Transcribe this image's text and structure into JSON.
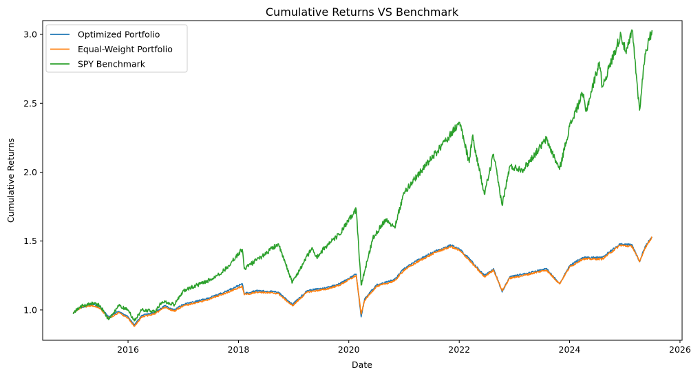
{
  "chart_data": {
    "type": "line",
    "title": "Cumulative Returns VS Benchmark",
    "xlabel": "Date",
    "ylabel": "Cumulative Returns",
    "xlim": [
      "2014-06-15",
      "2026-01-15"
    ],
    "ylim": [
      0.78,
      3.1
    ],
    "grid": false,
    "legend_position": "top-left",
    "x_ticks": [
      {
        "value": "2016-01-01",
        "label": "2016"
      },
      {
        "value": "2018-01-01",
        "label": "2018"
      },
      {
        "value": "2020-01-01",
        "label": "2020"
      },
      {
        "value": "2022-01-01",
        "label": "2022"
      },
      {
        "value": "2024-01-01",
        "label": "2024"
      },
      {
        "value": "2026-01-01",
        "label": "2026"
      }
    ],
    "y_ticks": [
      {
        "value": 1.0,
        "label": "1.0"
      },
      {
        "value": 1.5,
        "label": "1.5"
      },
      {
        "value": 2.0,
        "label": "2.0"
      },
      {
        "value": 2.5,
        "label": "2.5"
      },
      {
        "value": 3.0,
        "label": "3.0"
      }
    ],
    "series": [
      {
        "name": "Optimized Portfolio",
        "color": "#1f77b4",
        "points": [
          [
            "2015-01-02",
            0.98
          ],
          [
            "2015-03-01",
            1.02
          ],
          [
            "2015-05-15",
            1.04
          ],
          [
            "2015-07-01",
            1.02
          ],
          [
            "2015-08-25",
            0.95
          ],
          [
            "2015-11-01",
            0.99
          ],
          [
            "2016-01-01",
            0.95
          ],
          [
            "2016-02-11",
            0.89
          ],
          [
            "2016-04-01",
            0.96
          ],
          [
            "2016-06-24",
            0.98
          ],
          [
            "2016-09-01",
            1.03
          ],
          [
            "2016-11-01",
            1.0
          ],
          [
            "2017-01-01",
            1.04
          ],
          [
            "2017-06-01",
            1.08
          ],
          [
            "2017-10-01",
            1.13
          ],
          [
            "2018-01-26",
            1.19
          ],
          [
            "2018-02-08",
            1.12
          ],
          [
            "2018-05-01",
            1.14
          ],
          [
            "2018-09-20",
            1.13
          ],
          [
            "2018-12-24",
            1.04
          ],
          [
            "2019-04-01",
            1.14
          ],
          [
            "2019-08-01",
            1.16
          ],
          [
            "2019-11-01",
            1.19
          ],
          [
            "2020-02-19",
            1.26
          ],
          [
            "2020-03-23",
            0.95
          ],
          [
            "2020-04-15",
            1.08
          ],
          [
            "2020-07-01",
            1.18
          ],
          [
            "2020-10-30",
            1.22
          ],
          [
            "2021-01-01",
            1.3
          ],
          [
            "2021-04-01",
            1.36
          ],
          [
            "2021-08-01",
            1.43
          ],
          [
            "2021-11-08",
            1.47
          ],
          [
            "2022-01-04",
            1.44
          ],
          [
            "2022-03-01",
            1.38
          ],
          [
            "2022-06-16",
            1.25
          ],
          [
            "2022-08-16",
            1.3
          ],
          [
            "2022-10-12",
            1.13
          ],
          [
            "2022-12-01",
            1.24
          ],
          [
            "2023-03-01",
            1.26
          ],
          [
            "2023-07-31",
            1.3
          ],
          [
            "2023-10-27",
            1.19
          ],
          [
            "2024-01-01",
            1.32
          ],
          [
            "2024-03-28",
            1.38
          ],
          [
            "2024-08-05",
            1.38
          ],
          [
            "2024-12-01",
            1.48
          ],
          [
            "2025-02-19",
            1.47
          ],
          [
            "2025-04-08",
            1.35
          ],
          [
            "2025-05-15",
            1.46
          ],
          [
            "2025-06-30",
            1.53
          ]
        ]
      },
      {
        "name": "Equal-Weight Portfolio",
        "color": "#ff7f0e",
        "points": [
          [
            "2015-01-02",
            0.98
          ],
          [
            "2015-03-01",
            1.02
          ],
          [
            "2015-05-15",
            1.03
          ],
          [
            "2015-07-01",
            1.01
          ],
          [
            "2015-08-25",
            0.94
          ],
          [
            "2015-11-01",
            0.98
          ],
          [
            "2016-01-01",
            0.94
          ],
          [
            "2016-02-11",
            0.88
          ],
          [
            "2016-04-01",
            0.95
          ],
          [
            "2016-06-24",
            0.97
          ],
          [
            "2016-09-01",
            1.02
          ],
          [
            "2016-11-01",
            0.99
          ],
          [
            "2017-01-01",
            1.03
          ],
          [
            "2017-06-01",
            1.07
          ],
          [
            "2017-10-01",
            1.12
          ],
          [
            "2018-01-26",
            1.17
          ],
          [
            "2018-02-08",
            1.11
          ],
          [
            "2018-05-01",
            1.13
          ],
          [
            "2018-09-20",
            1.12
          ],
          [
            "2018-12-24",
            1.03
          ],
          [
            "2019-04-01",
            1.13
          ],
          [
            "2019-08-01",
            1.15
          ],
          [
            "2019-11-01",
            1.18
          ],
          [
            "2020-02-19",
            1.25
          ],
          [
            "2020-03-23",
            0.97
          ],
          [
            "2020-04-15",
            1.07
          ],
          [
            "2020-07-01",
            1.17
          ],
          [
            "2020-10-30",
            1.21
          ],
          [
            "2021-01-01",
            1.29
          ],
          [
            "2021-04-01",
            1.35
          ],
          [
            "2021-08-01",
            1.42
          ],
          [
            "2021-11-08",
            1.46
          ],
          [
            "2022-01-04",
            1.43
          ],
          [
            "2022-03-01",
            1.37
          ],
          [
            "2022-06-16",
            1.24
          ],
          [
            "2022-08-16",
            1.29
          ],
          [
            "2022-10-12",
            1.14
          ],
          [
            "2022-12-01",
            1.23
          ],
          [
            "2023-03-01",
            1.25
          ],
          [
            "2023-07-31",
            1.29
          ],
          [
            "2023-10-27",
            1.19
          ],
          [
            "2024-01-01",
            1.31
          ],
          [
            "2024-03-28",
            1.37
          ],
          [
            "2024-08-05",
            1.37
          ],
          [
            "2024-12-01",
            1.47
          ],
          [
            "2025-02-19",
            1.46
          ],
          [
            "2025-04-08",
            1.35
          ],
          [
            "2025-05-15",
            1.45
          ],
          [
            "2025-06-30",
            1.53
          ]
        ]
      },
      {
        "name": "SPY Benchmark",
        "color": "#2ca02c",
        "points": [
          [
            "2015-01-02",
            0.98
          ],
          [
            "2015-03-01",
            1.03
          ],
          [
            "2015-05-20",
            1.05
          ],
          [
            "2015-07-01",
            1.03
          ],
          [
            "2015-08-25",
            0.93
          ],
          [
            "2015-11-01",
            1.03
          ],
          [
            "2016-01-01",
            1.0
          ],
          [
            "2016-02-11",
            0.92
          ],
          [
            "2016-04-01",
            1.0
          ],
          [
            "2016-06-27",
            0.99
          ],
          [
            "2016-08-15",
            1.06
          ],
          [
            "2016-11-04",
            1.04
          ],
          [
            "2017-01-01",
            1.14
          ],
          [
            "2017-04-01",
            1.18
          ],
          [
            "2017-07-01",
            1.22
          ],
          [
            "2017-10-01",
            1.29
          ],
          [
            "2018-01-26",
            1.44
          ],
          [
            "2018-02-08",
            1.3
          ],
          [
            "2018-05-01",
            1.36
          ],
          [
            "2018-09-20",
            1.48
          ],
          [
            "2018-12-24",
            1.2
          ],
          [
            "2019-05-01",
            1.45
          ],
          [
            "2019-06-03",
            1.38
          ],
          [
            "2019-08-01",
            1.46
          ],
          [
            "2019-11-01",
            1.55
          ],
          [
            "2020-02-19",
            1.73
          ],
          [
            "2020-03-23",
            1.18
          ],
          [
            "2020-06-08",
            1.52
          ],
          [
            "2020-09-01",
            1.66
          ],
          [
            "2020-10-30",
            1.6
          ],
          [
            "2021-01-01",
            1.85
          ],
          [
            "2021-04-01",
            1.98
          ],
          [
            "2021-08-01",
            2.14
          ],
          [
            "2022-01-04",
            2.36
          ],
          [
            "2022-03-08",
            2.07
          ],
          [
            "2022-03-29",
            2.26
          ],
          [
            "2022-06-16",
            1.84
          ],
          [
            "2022-08-16",
            2.13
          ],
          [
            "2022-10-12",
            1.76
          ],
          [
            "2022-12-01",
            2.04
          ],
          [
            "2023-03-01",
            2.02
          ],
          [
            "2023-07-31",
            2.24
          ],
          [
            "2023-10-27",
            2.02
          ],
          [
            "2024-01-01",
            2.33
          ],
          [
            "2024-03-28",
            2.57
          ],
          [
            "2024-04-19",
            2.44
          ],
          [
            "2024-07-16",
            2.8
          ],
          [
            "2024-08-05",
            2.62
          ],
          [
            "2024-12-06",
            3.0
          ],
          [
            "2025-01-10",
            2.86
          ],
          [
            "2025-02-19",
            3.03
          ],
          [
            "2025-04-08",
            2.45
          ],
          [
            "2025-05-15",
            2.86
          ],
          [
            "2025-06-30",
            3.03
          ]
        ]
      }
    ]
  }
}
